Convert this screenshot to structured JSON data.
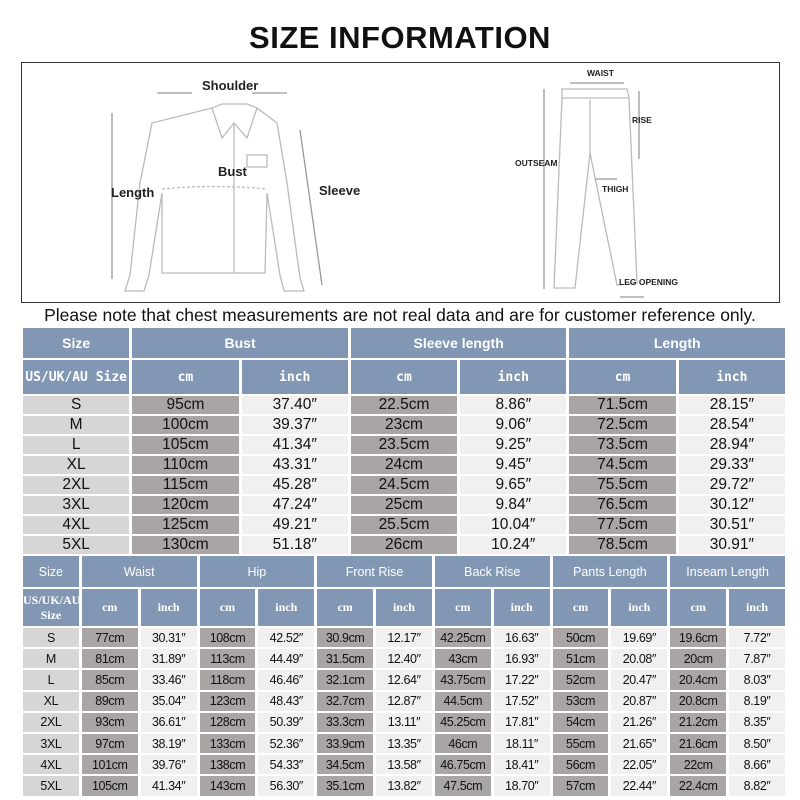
{
  "title": "SIZE INFORMATION",
  "diagram": {
    "shirt_labels": {
      "shoulder": "Shoulder",
      "bust": "Bust",
      "length": "Length",
      "sleeve": "Sleeve"
    },
    "pants_labels": {
      "waist": "WAIST",
      "rise": "RISE",
      "outseam": "OUTSEAM",
      "thigh": "THIGH",
      "leg_opening": "LEG OPENING"
    }
  },
  "note": "Please note that chest measurements are not real data and are for customer reference only.",
  "top_table": {
    "groups": [
      "Size",
      "Bust",
      "Sleeve length",
      "Length"
    ],
    "size_sub": "US/UK/AU Size",
    "units": [
      "cm",
      "inch",
      "cm",
      "inch",
      "cm",
      "inch"
    ],
    "rows": [
      [
        "S",
        "95cm",
        "37.40″",
        "22.5cm",
        "8.86″",
        "71.5cm",
        "28.15″"
      ],
      [
        "M",
        "100cm",
        "39.37″",
        "23cm",
        "9.06″",
        "72.5cm",
        "28.54″"
      ],
      [
        "L",
        "105cm",
        "41.34″",
        "23.5cm",
        "9.25″",
        "73.5cm",
        "28.94″"
      ],
      [
        "XL",
        "110cm",
        "43.31″",
        "24cm",
        "9.45″",
        "74.5cm",
        "29.33″"
      ],
      [
        "2XL",
        "115cm",
        "45.28″",
        "24.5cm",
        "9.65″",
        "75.5cm",
        "29.72″"
      ],
      [
        "3XL",
        "120cm",
        "47.24″",
        "25cm",
        "9.84″",
        "76.5cm",
        "30.12″"
      ],
      [
        "4XL",
        "125cm",
        "49.21″",
        "25.5cm",
        "10.04″",
        "77.5cm",
        "30.51″"
      ],
      [
        "5XL",
        "130cm",
        "51.18″",
        "26cm",
        "10.24″",
        "78.5cm",
        "30.91″"
      ]
    ]
  },
  "bottom_table": {
    "groups": [
      "Size",
      "Waist",
      "Hip",
      "Front Rise",
      "Back Rise",
      "Pants Length",
      "Inseam Length"
    ],
    "size_sub": "US/UK/AU Size",
    "units": [
      "cm",
      "inch",
      "cm",
      "inch",
      "cm",
      "inch",
      "cm",
      "inch",
      "cm",
      "inch",
      "cm",
      "inch"
    ],
    "rows": [
      [
        "S",
        "77cm",
        "30.31″",
        "108cm",
        "42.52″",
        "30.9cm",
        "12.17″",
        "42.25cm",
        "16.63″",
        "50cm",
        "19.69″",
        "19.6cm",
        "7.72″"
      ],
      [
        "M",
        "81cm",
        "31.89″",
        "113cm",
        "44.49″",
        "31.5cm",
        "12.40″",
        "43cm",
        "16.93″",
        "51cm",
        "20.08″",
        "20cm",
        "7.87″"
      ],
      [
        "L",
        "85cm",
        "33.46″",
        "118cm",
        "46.46″",
        "32.1cm",
        "12.64″",
        "43.75cm",
        "17.22″",
        "52cm",
        "20.47″",
        "20.4cm",
        "8.03″"
      ],
      [
        "XL",
        "89cm",
        "35.04″",
        "123cm",
        "48.43″",
        "32.7cm",
        "12.87″",
        "44.5cm",
        "17.52″",
        "53cm",
        "20.87″",
        "20.8cm",
        "8.19″"
      ],
      [
        "2XL",
        "93cm",
        "36.61″",
        "128cm",
        "50.39″",
        "33.3cm",
        "13.11″",
        "45.25cm",
        "17.81″",
        "54cm",
        "21.26″",
        "21.2cm",
        "8.35″"
      ],
      [
        "3XL",
        "97cm",
        "38.19″",
        "133cm",
        "52.36″",
        "33.9cm",
        "13.35″",
        "46cm",
        "18.11″",
        "55cm",
        "21.65″",
        "21.6cm",
        "8.50″"
      ],
      [
        "4XL",
        "101cm",
        "39.76″",
        "138cm",
        "54.33″",
        "34.5cm",
        "13.58″",
        "46.75cm",
        "18.41″",
        "56cm",
        "22.05″",
        "22cm",
        "8.66″"
      ],
      [
        "5XL",
        "105cm",
        "41.34″",
        "143cm",
        "56.30″",
        "35.1cm",
        "13.82″",
        "47.5cm",
        "18.70″",
        "57cm",
        "22.44″",
        "22.4cm",
        "8.82″"
      ]
    ]
  },
  "colors": {
    "header": "#8297b3",
    "size_cell": "#d6d6d6",
    "cm_cell": "#a9a5a5",
    "inch_cell": "#f0f0f0"
  }
}
